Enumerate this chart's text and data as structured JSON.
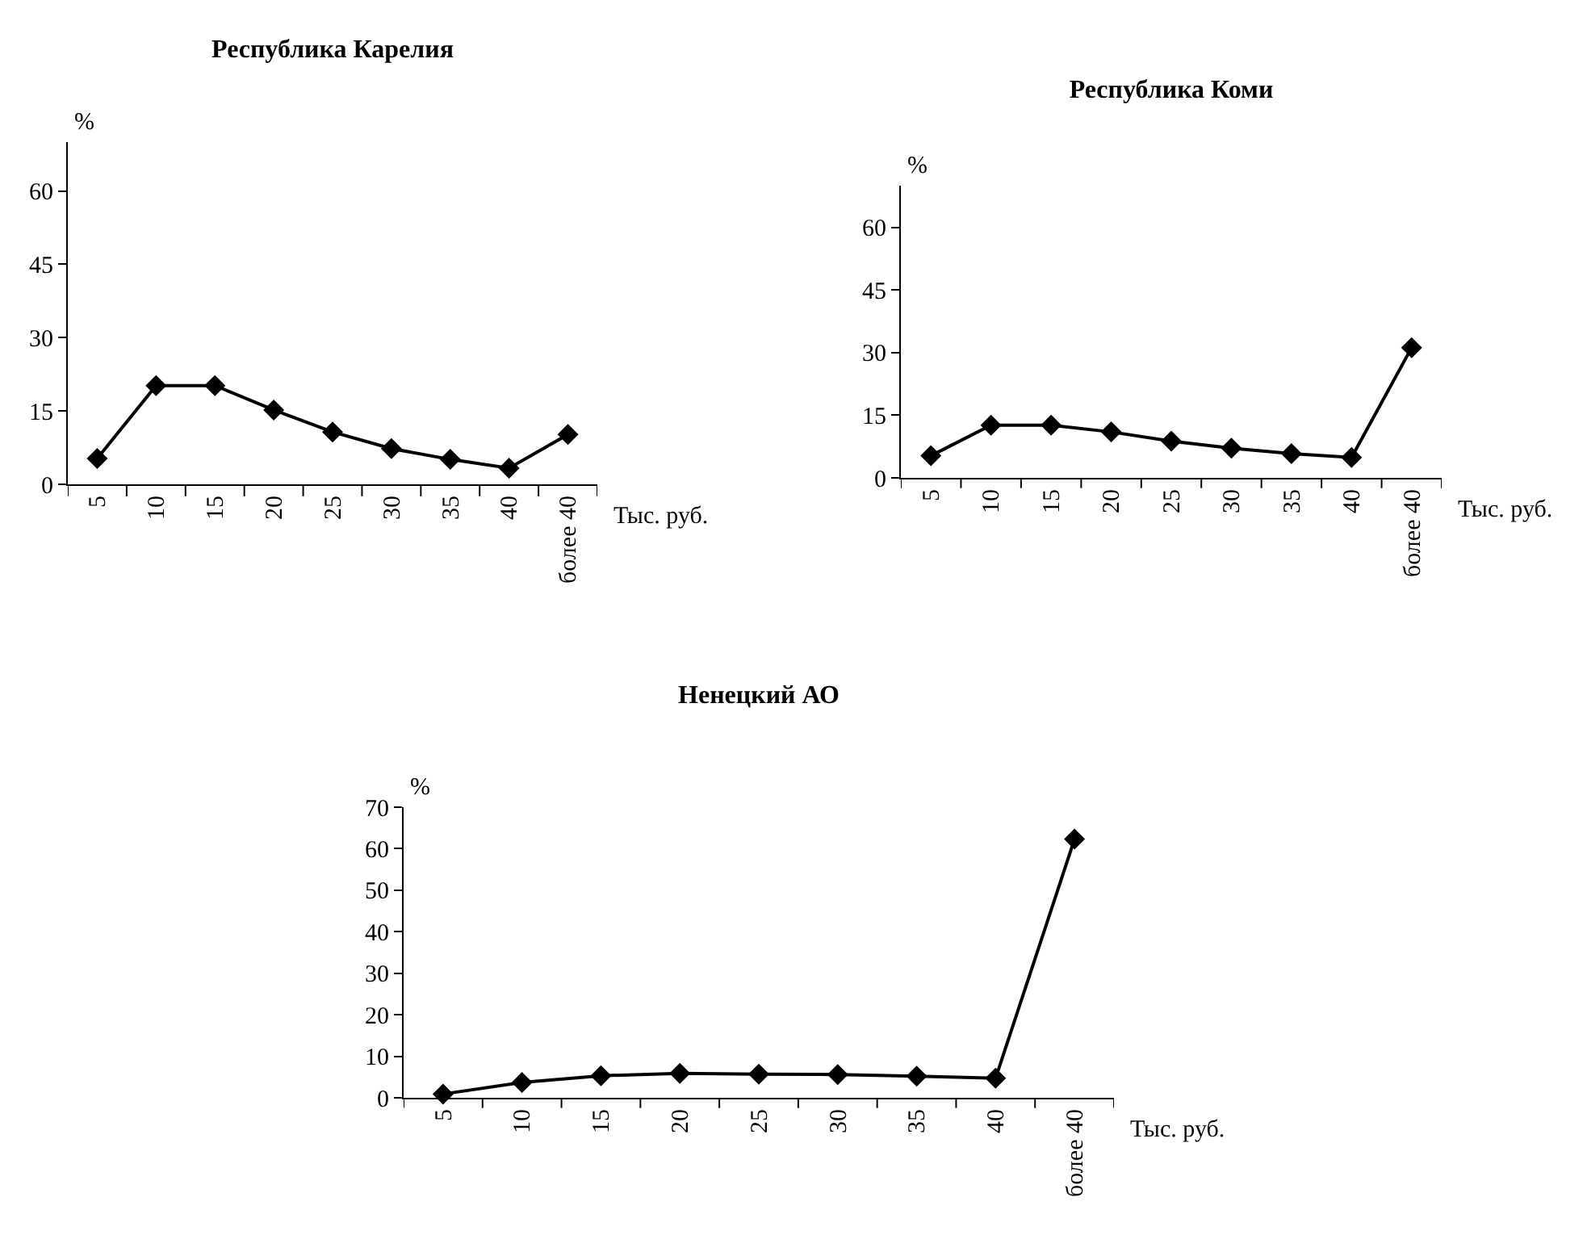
{
  "chart_data": [
    {
      "type": "line",
      "title": "Республика Карелия",
      "ylabel": "%",
      "xlabel": "Тыс. руб.",
      "categories": [
        "5",
        "10",
        "15",
        "20",
        "25",
        "30",
        "35",
        "40",
        "более 40"
      ],
      "series": [
        {
          "color": "#000000",
          "values": [
            5.3,
            20.2,
            20.2,
            15.2,
            10.7,
            7.3,
            5.1,
            3.3,
            10.2
          ]
        }
      ],
      "ylim": [
        0,
        70
      ],
      "yticks": [
        0,
        15,
        30,
        45,
        60
      ],
      "grid": false,
      "marker": "diamond",
      "line_style": "solid"
    },
    {
      "type": "line",
      "title": "Республика Коми",
      "ylabel": "%",
      "xlabel": "Тыс. руб.",
      "categories": [
        "5",
        "10",
        "15",
        "20",
        "25",
        "30",
        "35",
        "40",
        "более 40"
      ],
      "series": [
        {
          "color": "#000000",
          "values": [
            5.3,
            12.6,
            12.6,
            11.0,
            8.8,
            7.1,
            5.8,
            4.9,
            31.2
          ]
        }
      ],
      "ylim": [
        0,
        70
      ],
      "yticks": [
        0,
        15,
        30,
        45,
        60
      ],
      "grid": false,
      "marker": "diamond",
      "line_style": "solid"
    },
    {
      "type": "line",
      "title": "Ненецкий АО",
      "ylabel": "%",
      "xlabel": "Тыс. руб.",
      "categories": [
        "5",
        "10",
        "15",
        "20",
        "25",
        "30",
        "35",
        "40",
        "более 40"
      ],
      "series": [
        {
          "color": "#000000",
          "values": [
            0.9,
            3.7,
            5.3,
            5.9,
            5.7,
            5.6,
            5.2,
            4.7,
            62.3
          ]
        }
      ],
      "ylim": [
        0,
        70
      ],
      "yticks": [
        0,
        10,
        20,
        30,
        40,
        50,
        60,
        70
      ],
      "grid": false,
      "marker": "diamond",
      "line_style": "solid"
    }
  ]
}
